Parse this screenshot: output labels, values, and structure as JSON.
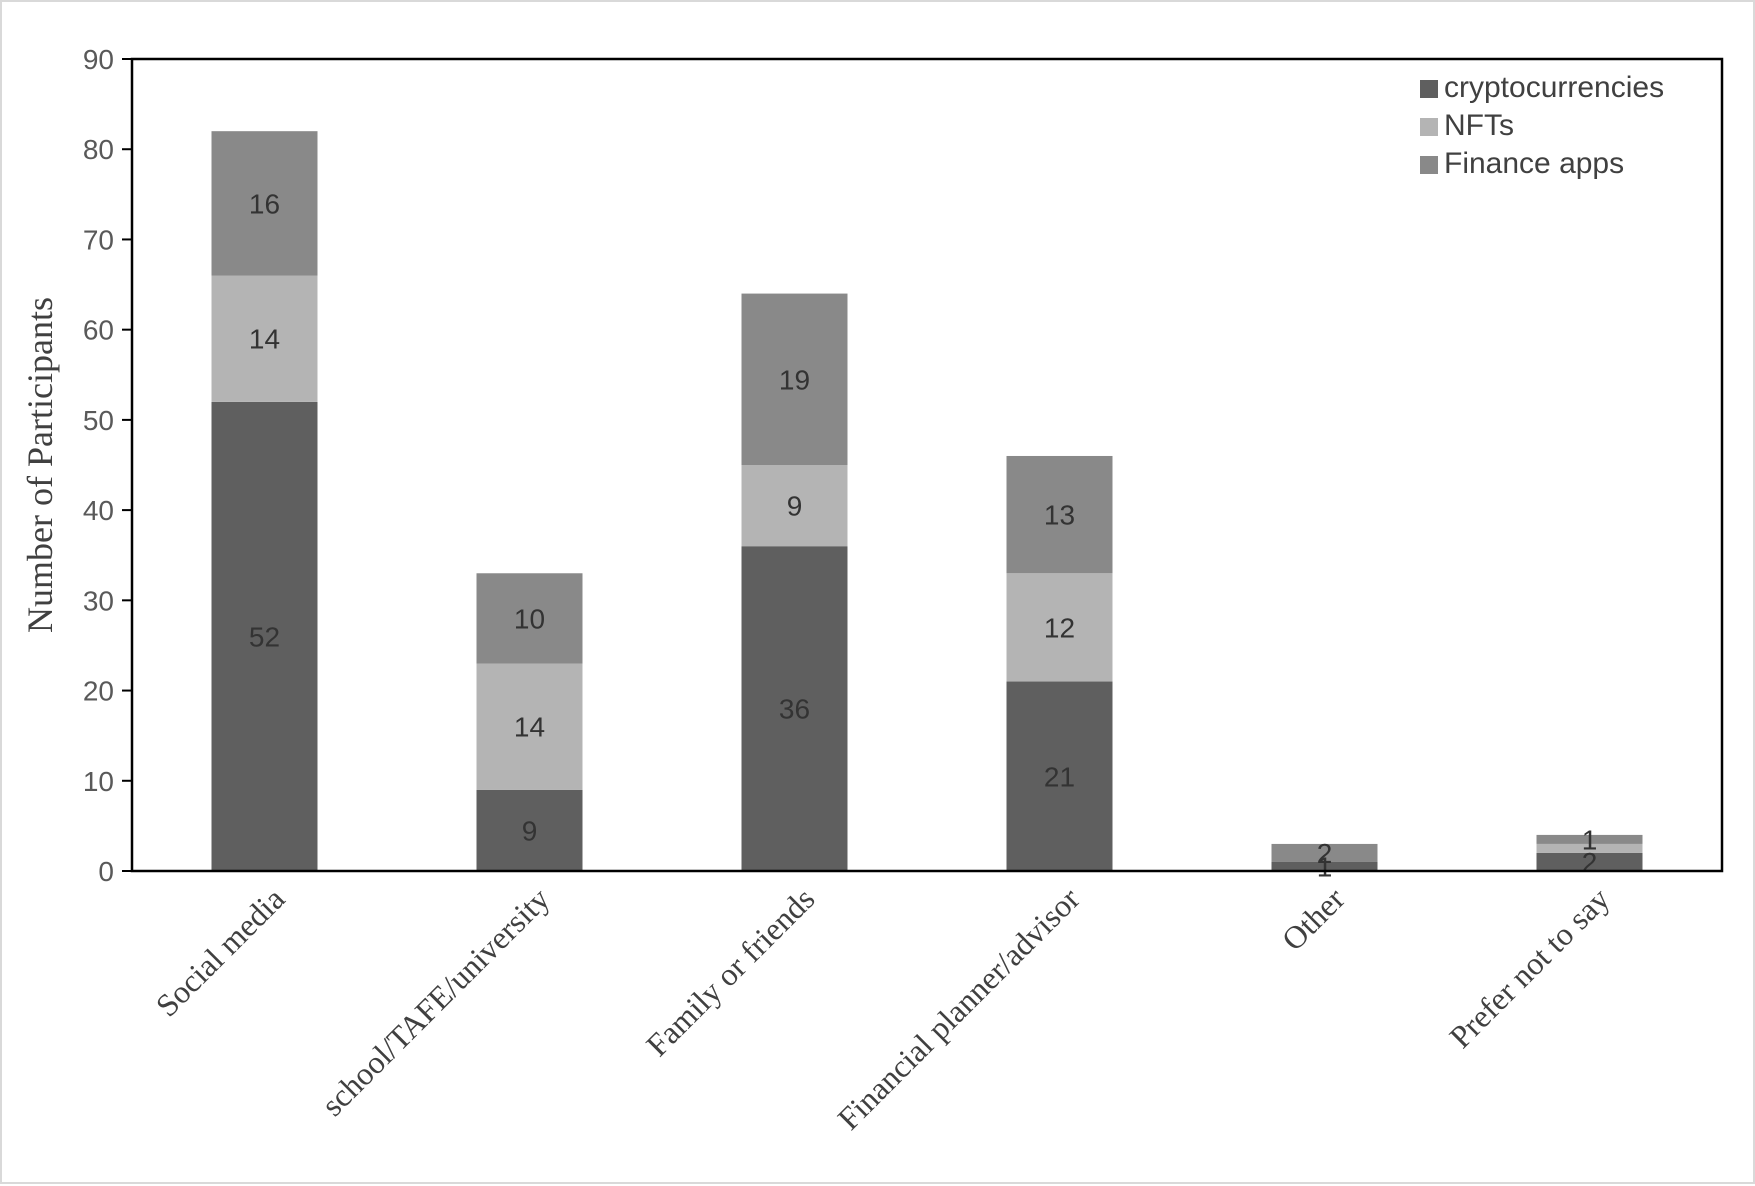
{
  "chart_data": {
    "type": "bar",
    "stacked": true,
    "categories": [
      "Social media",
      "school/TAFE/university",
      "Family or friends",
      "Financial planner/advisor",
      "Other",
      "Prefer not to say"
    ],
    "series": [
      {
        "name": "cryptocurrencies",
        "color": "#5f5f5f",
        "values": [
          52,
          9,
          36,
          21,
          1,
          2
        ],
        "labels": [
          "52",
          "9",
          "36",
          "21",
          "1",
          "2"
        ]
      },
      {
        "name": "NFTs",
        "color": "#b4b4b4",
        "values": [
          14,
          14,
          9,
          12,
          0,
          1
        ],
        "labels": [
          "14",
          "14",
          "9",
          "12",
          "",
          ""
        ]
      },
      {
        "name": "Finance apps",
        "color": "#898989",
        "values": [
          16,
          10,
          19,
          13,
          2,
          1
        ],
        "labels": [
          "16",
          "10",
          "19",
          "13",
          "2",
          "1"
        ]
      }
    ],
    "title": "",
    "xlabel": "",
    "ylabel": "Number of Participants",
    "ylim": [
      0,
      90
    ],
    "yticks": [
      "0",
      "10",
      "20",
      "30",
      "40",
      "50",
      "60",
      "70",
      "80",
      "90"
    ],
    "grid": false,
    "legend_position": "top-right"
  }
}
